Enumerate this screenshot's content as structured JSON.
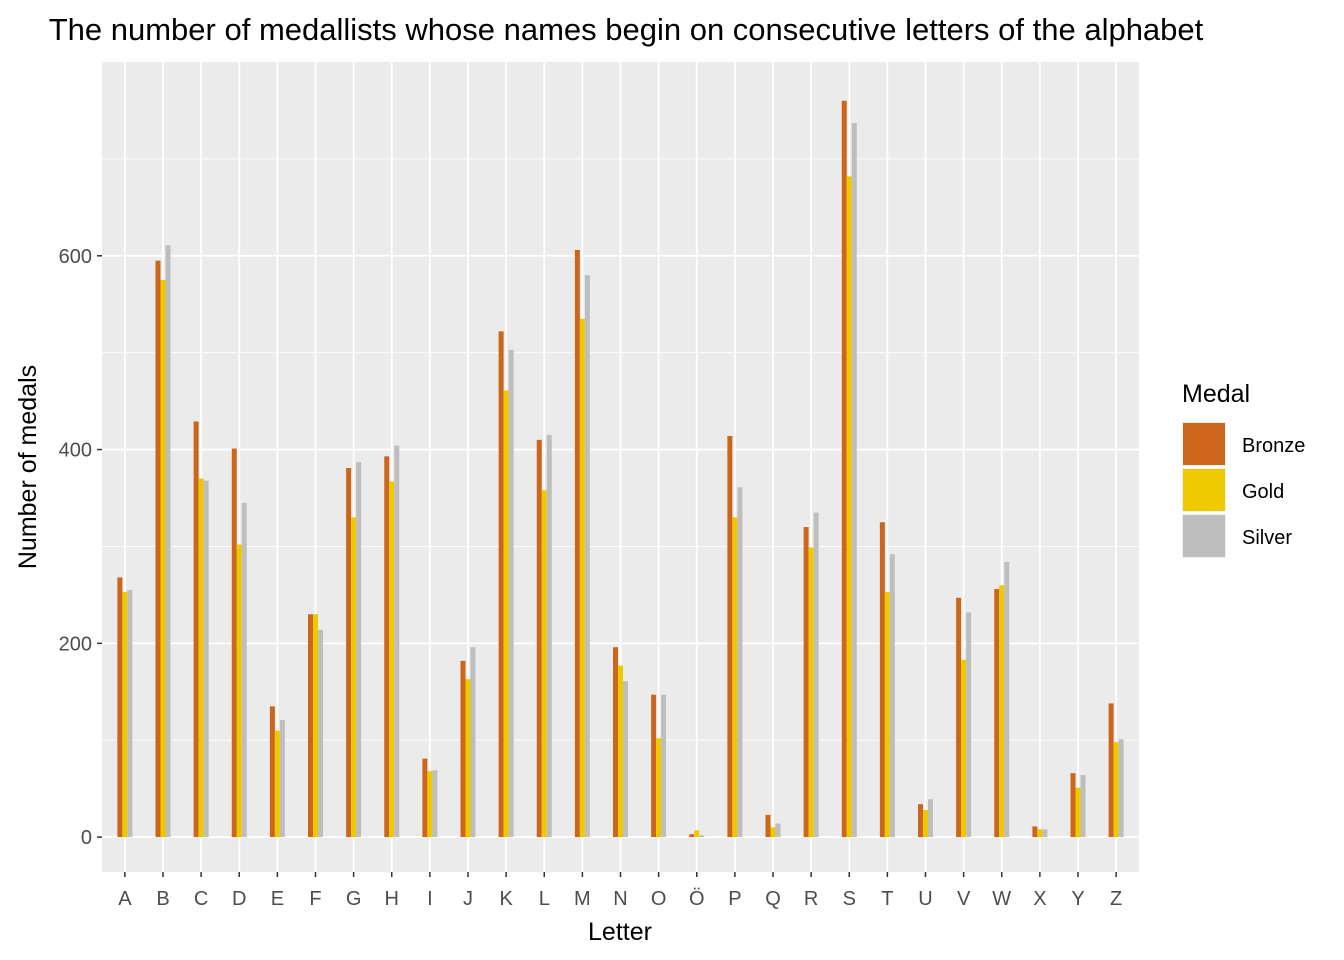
{
  "chart_data": {
    "type": "bar",
    "title": "The number of medallists whose names begin on consecutive letters of the alphabet",
    "xlabel": "Letter",
    "ylabel": "Number of medals",
    "ylim": [
      -36,
      800
    ],
    "y_ticks": [
      0,
      200,
      400,
      600
    ],
    "y_tick_labels": [
      "0",
      "200",
      "400",
      "600"
    ],
    "grid": true,
    "legend_position": "right",
    "legend_title": "Medal",
    "categories": [
      "A",
      "B",
      "C",
      "D",
      "E",
      "F",
      "G",
      "H",
      "I",
      "J",
      "K",
      "L",
      "M",
      "N",
      "O",
      "Ö",
      "P",
      "Q",
      "R",
      "S",
      "T",
      "U",
      "V",
      "W",
      "X",
      "Y",
      "Z"
    ],
    "series": [
      {
        "name": "Bronze",
        "color": "#CD661D",
        "values": [
          268,
          595,
          429,
          401,
          135,
          230,
          381,
          393,
          81,
          182,
          522,
          410,
          606,
          196,
          147,
          3,
          414,
          23,
          320,
          760,
          325,
          34,
          247,
          256,
          11,
          66,
          138
        ]
      },
      {
        "name": "Gold",
        "color": "#EEC900",
        "values": [
          253,
          575,
          370,
          302,
          110,
          230,
          330,
          367,
          68,
          163,
          461,
          358,
          535,
          177,
          102,
          7,
          330,
          10,
          299,
          682,
          253,
          28,
          183,
          260,
          8,
          51,
          98
        ]
      },
      {
        "name": "Silver",
        "color": "#BEBEBE",
        "values": [
          255,
          611,
          368,
          345,
          121,
          214,
          387,
          404,
          69,
          196,
          503,
          415,
          580,
          161,
          147,
          2,
          361,
          14,
          335,
          737,
          292,
          39,
          232,
          284,
          8,
          64,
          101
        ]
      }
    ]
  }
}
